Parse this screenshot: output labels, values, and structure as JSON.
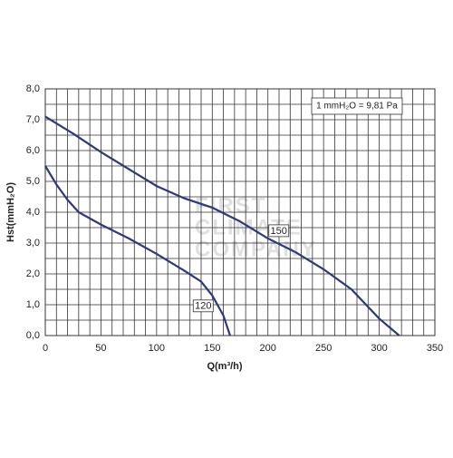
{
  "chart_data": {
    "type": "line",
    "xlabel": "Q(m³/h)",
    "ylabel": "Hst(mmH₂O)",
    "annotation": "1 mmH₂O = 9,81 Pa",
    "watermark": [
      "FIRST",
      "CLIMATE",
      "COMPANY"
    ],
    "xlim": [
      0,
      350
    ],
    "ylim": [
      0,
      8
    ],
    "xticks": [
      0,
      50,
      100,
      150,
      200,
      250,
      300,
      350
    ],
    "yticks": [
      {
        "value": 0,
        "label": "0,0"
      },
      {
        "value": 1,
        "label": "1,0"
      },
      {
        "value": 2,
        "label": "2,0"
      },
      {
        "value": 3,
        "label": "3,0"
      },
      {
        "value": 4,
        "label": "4,0"
      },
      {
        "value": 5,
        "label": "5,0"
      },
      {
        "value": 6,
        "label": "6,0"
      },
      {
        "value": 7,
        "label": "7,0"
      },
      {
        "value": 8,
        "label": "8,0"
      }
    ],
    "xgrid": [
      10,
      20,
      30,
      40,
      60,
      70,
      80,
      90,
      110,
      120,
      130,
      140,
      160,
      170,
      180,
      190,
      210,
      220,
      230,
      240,
      260,
      270,
      280,
      290,
      310,
      320,
      330,
      340
    ],
    "ygrid": [
      0.5,
      1.5,
      2.5,
      3.5,
      4.5,
      5.5,
      6.5,
      7.5
    ],
    "grid": true,
    "series": [
      {
        "name": "150",
        "color": "#2f3978",
        "x": [
          0,
          25,
          50,
          75,
          100,
          125,
          150,
          175,
          200,
          225,
          250,
          275,
          300,
          318
        ],
        "values": [
          7.1,
          6.55,
          5.95,
          5.4,
          4.85,
          4.45,
          4.15,
          3.7,
          3.15,
          2.7,
          2.15,
          1.5,
          0.55,
          0
        ]
      },
      {
        "name": "120",
        "color": "#2f3978",
        "x": [
          0,
          10,
          20,
          30,
          50,
          75,
          100,
          125,
          140,
          150,
          160,
          166
        ],
        "values": [
          5.5,
          4.9,
          4.4,
          4.0,
          3.6,
          3.15,
          2.65,
          2.1,
          1.75,
          1.3,
          0.65,
          0
        ]
      }
    ]
  }
}
